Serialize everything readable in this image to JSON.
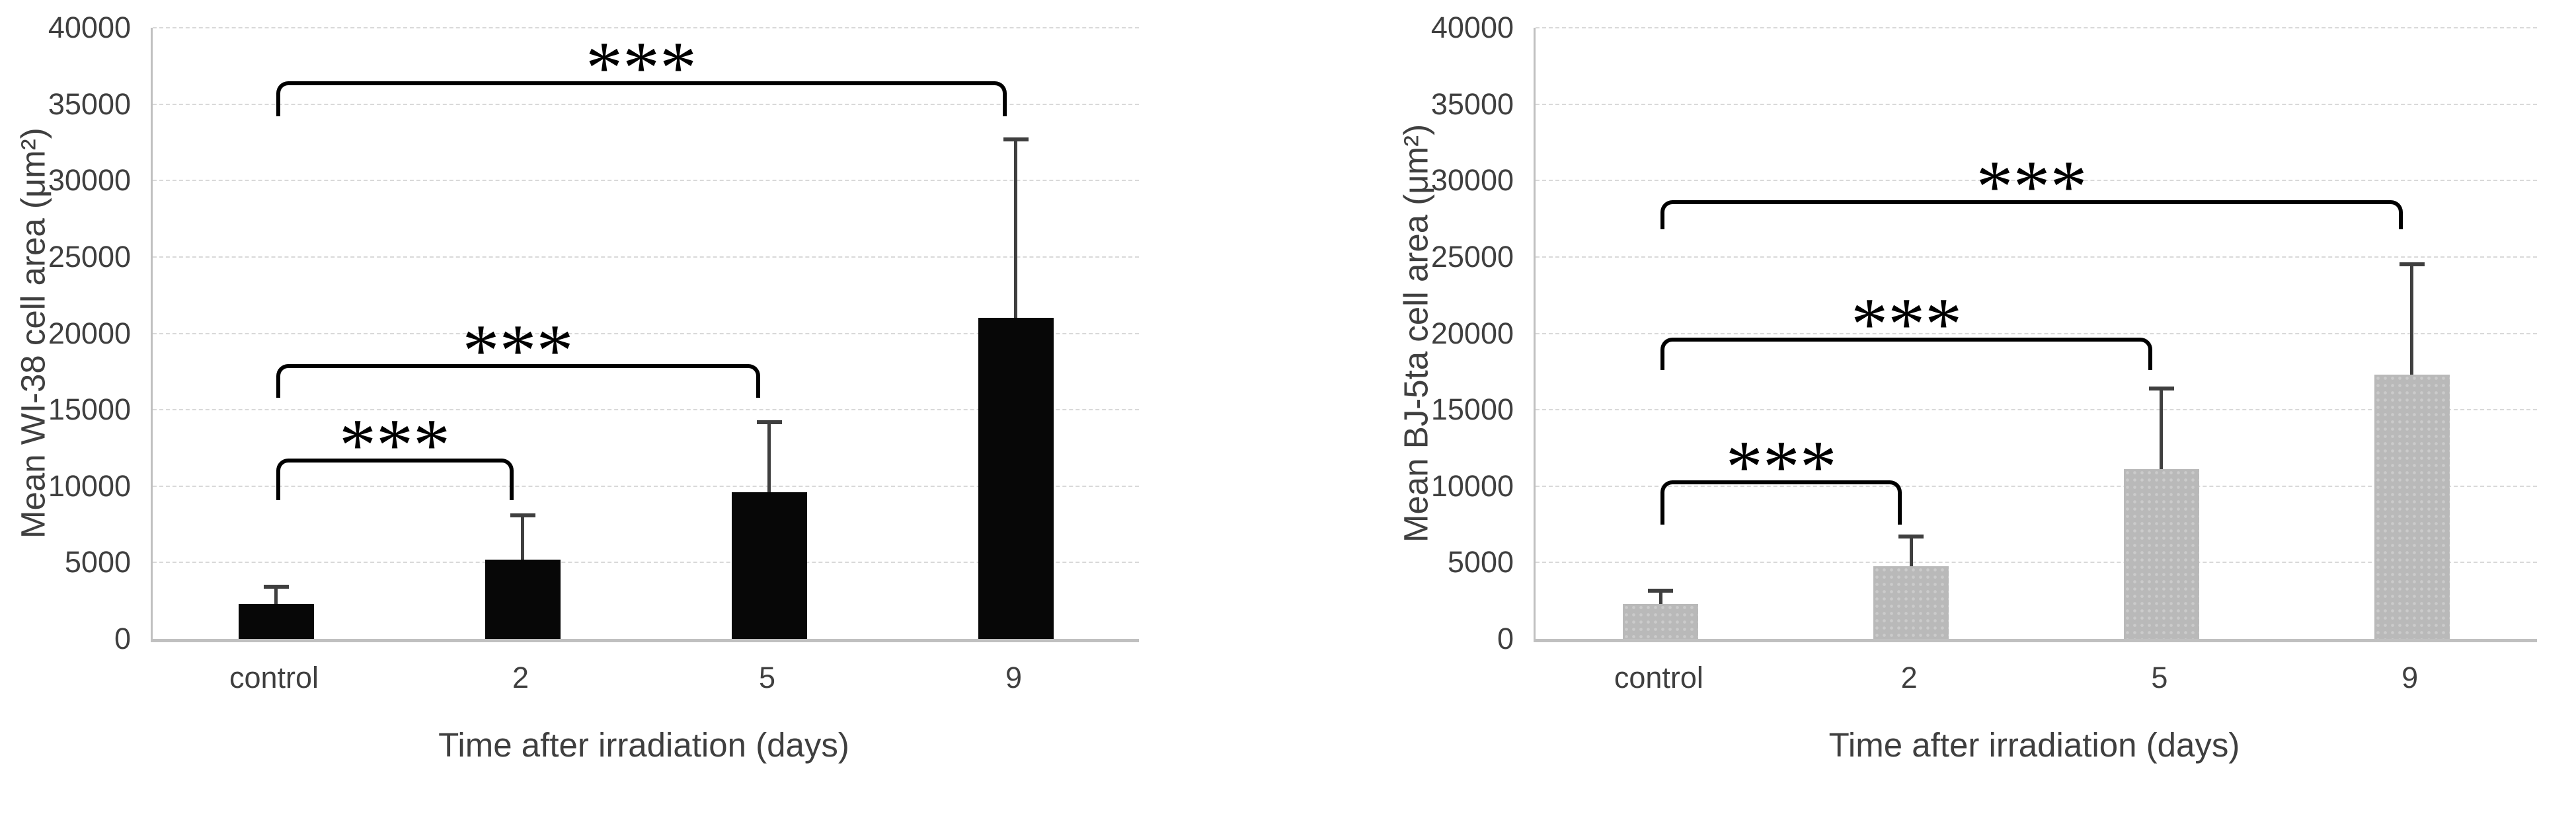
{
  "figure": {
    "description": "Two Excel-style bar charts of mean cell area after irradiation with upper error bars and significance brackets",
    "background_color": "#ffffff",
    "grid_color": "#d9d9d9",
    "axis_color": "#c0c0c0",
    "text_color": "#3f3f3f",
    "significance_label": "***"
  },
  "chart_data": [
    {
      "type": "bar",
      "name": "WI-38",
      "ylabel": "Mean WI-38 cell area (μm²)",
      "xlabel": "Time after irradiation (days)",
      "categories": [
        "control",
        "2",
        "5",
        "9"
      ],
      "values": [
        2300,
        5200,
        9600,
        21000
      ],
      "error_upper": [
        3400,
        8100,
        14200,
        32700
      ],
      "bar_color": "#070707",
      "bar_style": "black",
      "ylim": [
        0,
        40000
      ],
      "ytick_step": 5000,
      "ytick_labels": [
        "0",
        "5000",
        "10000",
        "15000",
        "20000",
        "25000",
        "30000",
        "35000",
        "40000"
      ],
      "grid": "dashed horizontal",
      "legend": "none",
      "significance": [
        {
          "from": 0,
          "to": 1,
          "level": 11800,
          "tip": 9100,
          "label": "***"
        },
        {
          "from": 0,
          "to": 2,
          "level": 18000,
          "tip": 15800,
          "label": "***"
        },
        {
          "from": 0,
          "to": 3,
          "level": 36500,
          "tip": 34200,
          "label": "***"
        }
      ]
    },
    {
      "type": "bar",
      "name": "BJ-5ta",
      "ylabel": "Mean BJ-5ta cell area (μm²)",
      "xlabel": "Time after irradiation (days)",
      "categories": [
        "control",
        "2",
        "5",
        "9"
      ],
      "values": [
        2300,
        4750,
        11100,
        17300
      ],
      "error_upper": [
        3150,
        6700,
        16400,
        24500
      ],
      "bar_color": "#b9b9b9",
      "bar_style": "gray",
      "ylim": [
        0,
        40000
      ],
      "ytick_step": 5000,
      "ytick_labels": [
        "0",
        "5000",
        "10000",
        "15000",
        "20000",
        "25000",
        "30000",
        "35000",
        "40000"
      ],
      "grid": "dashed horizontal",
      "legend": "none",
      "significance": [
        {
          "from": 0,
          "to": 1,
          "level": 10400,
          "tip": 7500,
          "label": "***"
        },
        {
          "from": 0,
          "to": 2,
          "level": 19700,
          "tip": 17600,
          "label": "***"
        },
        {
          "from": 0,
          "to": 3,
          "level": 28700,
          "tip": 26800,
          "label": "***"
        }
      ]
    }
  ]
}
